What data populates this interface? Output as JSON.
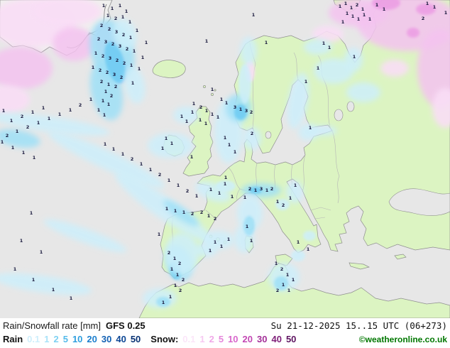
{
  "caption": {
    "title": "Rain/Snowfall rate [mm]",
    "model": "GFS 0.25",
    "datetime": "Su 21-12-2025 15..15 UTC (06+273)",
    "rain_label": "Rain",
    "snow_label": "Snow:",
    "rain_values": [
      "0.1",
      "1",
      "2",
      "5",
      "10",
      "20",
      "30",
      "40",
      "50"
    ],
    "rain_colors": [
      "#cfeffc",
      "#a9e2f8",
      "#7dd0f2",
      "#54baea",
      "#2f9fdf",
      "#1b7fce",
      "#1261b4",
      "#0c4694",
      "#083273"
    ],
    "snow_values": [
      "0.1",
      "1",
      "2",
      "5",
      "10",
      "20",
      "30",
      "40",
      "50"
    ],
    "snow_colors": [
      "#fbe6f9",
      "#f7c9f2",
      "#f0a8e8",
      "#e687dc",
      "#d867cc",
      "#c347b4",
      "#a32f98",
      "#80217a",
      "#5e1460"
    ],
    "copyright": "©weatheronline.co.uk"
  },
  "map": {
    "colors": {
      "sea": "#e7e7e7",
      "land": "#dcf4c2",
      "ice": "#f0f0ee",
      "coast": "#8f8f8f",
      "border": "#b5b5b5",
      "rain_light": "#cdeffb",
      "rain_mid": "#9fe0f7",
      "rain_strong": "#6fccf3",
      "snow_light": "#f9def6",
      "snow_mid": "#f4c3f0",
      "snow_deep": "#ec9ce4",
      "value_color": "#16163a"
    },
    "values": [
      [
        146,
        10,
        1
      ],
      [
        158,
        14,
        1
      ],
      [
        169,
        10,
        1
      ],
      [
        178,
        18,
        1
      ],
      [
        152,
        24,
        1
      ],
      [
        163,
        28,
        2
      ],
      [
        173,
        26,
        1
      ],
      [
        183,
        33,
        1
      ],
      [
        143,
        38,
        2
      ],
      [
        154,
        43,
        2
      ],
      [
        164,
        47,
        3
      ],
      [
        174,
        51,
        2
      ],
      [
        184,
        55,
        1
      ],
      [
        139,
        57,
        2
      ],
      [
        149,
        61,
        3
      ],
      [
        159,
        64,
        2
      ],
      [
        169,
        67,
        3
      ],
      [
        179,
        71,
        2
      ],
      [
        189,
        74,
        1
      ],
      [
        135,
        77,
        1
      ],
      [
        145,
        81,
        2
      ],
      [
        155,
        84,
        3
      ],
      [
        165,
        87,
        2
      ],
      [
        175,
        91,
        2
      ],
      [
        185,
        94,
        1
      ],
      [
        131,
        97,
        1
      ],
      [
        141,
        101,
        2
      ],
      [
        151,
        104,
        2
      ],
      [
        161,
        107,
        3
      ],
      [
        171,
        111,
        2
      ],
      [
        143,
        117,
        2
      ],
      [
        153,
        121,
        1
      ],
      [
        163,
        124,
        2
      ],
      [
        149,
        131,
        1
      ],
      [
        157,
        137,
        2
      ],
      [
        145,
        144,
        1
      ],
      [
        153,
        149,
        1
      ],
      [
        139,
        157,
        1
      ],
      [
        147,
        164,
        1
      ],
      [
        187,
        119,
        1
      ],
      [
        196,
        99,
        1
      ],
      [
        201,
        83,
        1
      ],
      [
        206,
        62,
        1
      ],
      [
        193,
        45,
        1
      ],
      [
        128,
        142,
        1
      ],
      [
        113,
        150,
        2
      ],
      [
        99,
        157,
        1
      ],
      [
        84,
        163,
        1
      ],
      [
        69,
        169,
        1
      ],
      [
        54,
        175,
        1
      ],
      [
        39,
        181,
        2
      ],
      [
        24,
        187,
        1
      ],
      [
        10,
        193,
        2
      ],
      [
        3,
        202,
        1
      ],
      [
        18,
        210,
        1
      ],
      [
        33,
        217,
        1
      ],
      [
        48,
        224,
        1
      ],
      [
        16,
        172,
        1
      ],
      [
        31,
        166,
        2
      ],
      [
        46,
        160,
        1
      ],
      [
        61,
        154,
        1
      ],
      [
        5,
        158,
        1
      ],
      [
        160,
        212,
        1
      ],
      [
        173,
        219,
        1
      ],
      [
        186,
        226,
        2
      ],
      [
        199,
        233,
        1
      ],
      [
        212,
        241,
        1
      ],
      [
        225,
        248,
        2
      ],
      [
        238,
        256,
        1
      ],
      [
        251,
        263,
        1
      ],
      [
        264,
        271,
        2
      ],
      [
        277,
        278,
        1
      ],
      [
        148,
        205,
        1
      ],
      [
        235,
        296,
        1
      ],
      [
        247,
        299,
        1
      ],
      [
        259,
        301,
        1
      ],
      [
        271,
        303,
        2
      ],
      [
        284,
        301,
        2
      ],
      [
        294,
        306,
        1
      ],
      [
        303,
        310,
        2
      ],
      [
        256,
        166,
        1
      ],
      [
        263,
        173,
        1
      ],
      [
        234,
        197,
        1
      ],
      [
        242,
        204,
        1
      ],
      [
        229,
        211,
        1
      ],
      [
        270,
        223,
        1
      ],
      [
        291,
        60,
        1
      ],
      [
        299,
        128,
        1
      ],
      [
        273,
        148,
        1
      ],
      [
        283,
        153,
        2
      ],
      [
        291,
        158,
        1
      ],
      [
        299,
        163,
        1
      ],
      [
        307,
        167,
        1
      ],
      [
        282,
        171,
        1
      ],
      [
        290,
        176,
        1
      ],
      [
        271,
        160,
        1
      ],
      [
        331,
        153,
        3
      ],
      [
        339,
        156,
        1
      ],
      [
        347,
        158,
        3
      ],
      [
        354,
        160,
        2
      ],
      [
        319,
        147,
        1
      ],
      [
        312,
        142,
        1
      ],
      [
        357,
        23,
        1
      ],
      [
        375,
        62,
        1
      ],
      [
        317,
        196,
        1
      ],
      [
        323,
        206,
        1
      ],
      [
        331,
        216,
        1
      ],
      [
        355,
        190,
        2
      ],
      [
        431,
        117,
        1
      ],
      [
        437,
        182,
        1
      ],
      [
        456,
        63,
        1
      ],
      [
        464,
        69,
        1
      ],
      [
        499,
        82,
        1
      ],
      [
        448,
        98,
        1
      ],
      [
        479,
        11,
        1
      ],
      [
        487,
        7,
        1
      ],
      [
        495,
        13,
        1
      ],
      [
        503,
        9,
        2
      ],
      [
        511,
        15,
        1
      ],
      [
        489,
        21,
        1
      ],
      [
        497,
        25,
        1
      ],
      [
        505,
        29,
        1
      ],
      [
        513,
        23,
        1
      ],
      [
        521,
        29,
        1
      ],
      [
        483,
        33,
        1
      ],
      [
        531,
        9,
        1
      ],
      [
        541,
        15,
        1
      ],
      [
        602,
        7,
        1
      ],
      [
        612,
        12,
        1
      ],
      [
        596,
        28,
        2
      ],
      [
        628,
        20,
        1
      ],
      [
        352,
        268,
        2
      ],
      [
        360,
        270,
        1
      ],
      [
        368,
        268,
        3
      ],
      [
        376,
        270,
        1
      ],
      [
        383,
        268,
        2
      ],
      [
        345,
        280,
        1
      ],
      [
        391,
        286,
        1
      ],
      [
        399,
        291,
        2
      ],
      [
        409,
        281,
        1
      ],
      [
        416,
        263,
        1
      ],
      [
        348,
        321,
        1
      ],
      [
        354,
        341,
        1
      ],
      [
        303,
        343,
        1
      ],
      [
        312,
        349,
        1
      ],
      [
        322,
        339,
        1
      ],
      [
        296,
        355,
        1
      ],
      [
        238,
        358,
        2
      ],
      [
        246,
        366,
        1
      ],
      [
        253,
        373,
        2
      ],
      [
        242,
        381,
        1
      ],
      [
        250,
        389,
        1
      ],
      [
        258,
        396,
        2
      ],
      [
        247,
        404,
        1
      ],
      [
        254,
        411,
        2
      ],
      [
        240,
        420,
        1
      ],
      [
        230,
        428,
        1
      ],
      [
        389,
        373,
        1
      ],
      [
        397,
        381,
        2
      ],
      [
        405,
        389,
        1
      ],
      [
        413,
        396,
        1
      ],
      [
        399,
        403,
        1
      ],
      [
        391,
        411,
        2
      ],
      [
        407,
        411,
        1
      ],
      [
        434,
        353,
        1
      ],
      [
        420,
        343,
        1
      ],
      [
        297,
        269,
        1
      ],
      [
        309,
        274,
        1
      ],
      [
        317,
        261,
        1
      ],
      [
        327,
        279,
        1
      ],
      [
        318,
        252,
        1
      ],
      [
        44,
        302,
        1
      ],
      [
        30,
        341,
        1
      ],
      [
        58,
        357,
        1
      ],
      [
        21,
        381,
        1
      ],
      [
        47,
        396,
        1
      ],
      [
        75,
        410,
        1
      ],
      [
        100,
        422,
        1
      ],
      [
        224,
        332,
        1
      ]
    ]
  }
}
